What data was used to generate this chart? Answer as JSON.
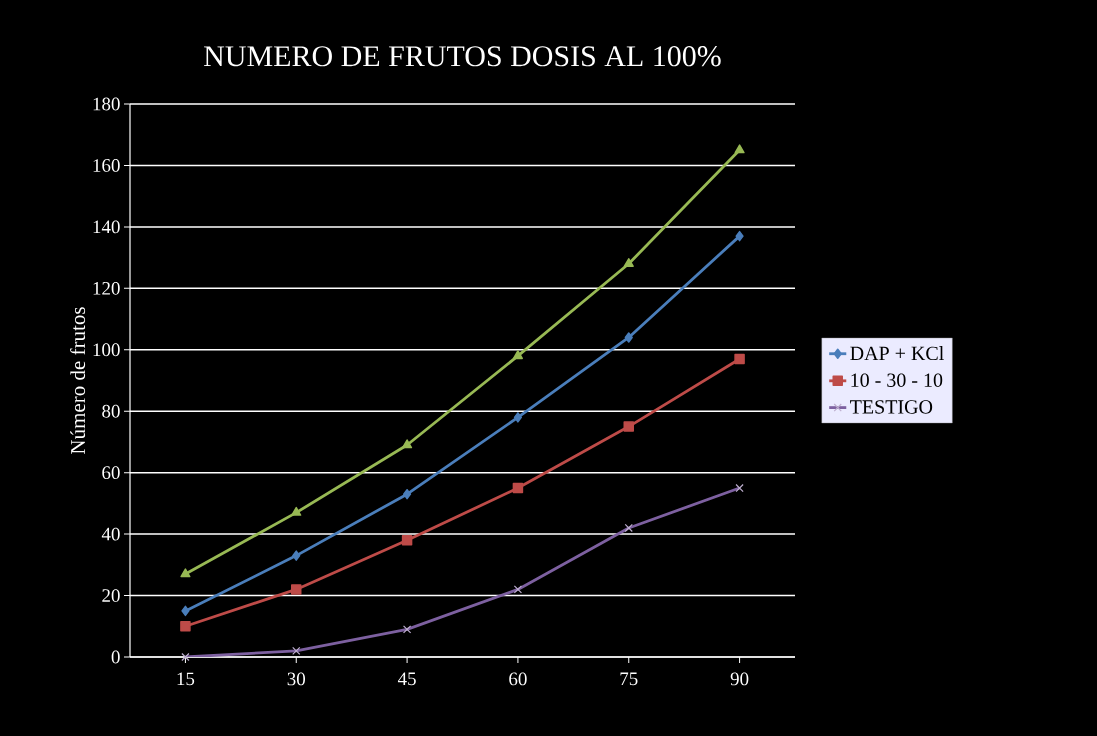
{
  "chart_data": {
    "type": "line",
    "title": "NUMERO DE FRUTOS DOSIS AL 100%",
    "ylabel": "Número de frutos",
    "categories": [
      "15",
      "30",
      "45",
      "60",
      "75",
      "90"
    ],
    "series": [
      {
        "name": "DAP + KCl",
        "color": "#4a7ebb",
        "marker": "diamond",
        "values": [
          15,
          33,
          53,
          78,
          104,
          137
        ]
      },
      {
        "name": "10 - 30 - 10",
        "color": "#be4b48",
        "marker": "square",
        "values": [
          10,
          22,
          38,
          55,
          75,
          97
        ]
      },
      {
        "color": "#98b954",
        "marker": "triangle",
        "values": [
          27,
          47,
          69,
          98,
          128,
          165
        ]
      },
      {
        "name": "TESTIGO",
        "color": "#7d60a0",
        "marker": "cross",
        "values": [
          0,
          2,
          9,
          22,
          42,
          55
        ]
      }
    ],
    "ylim": [
      0,
      180
    ],
    "yticks": [
      0,
      20,
      40,
      60,
      80,
      100,
      120,
      140,
      160,
      180
    ],
    "grid": "y",
    "legend": "right"
  }
}
